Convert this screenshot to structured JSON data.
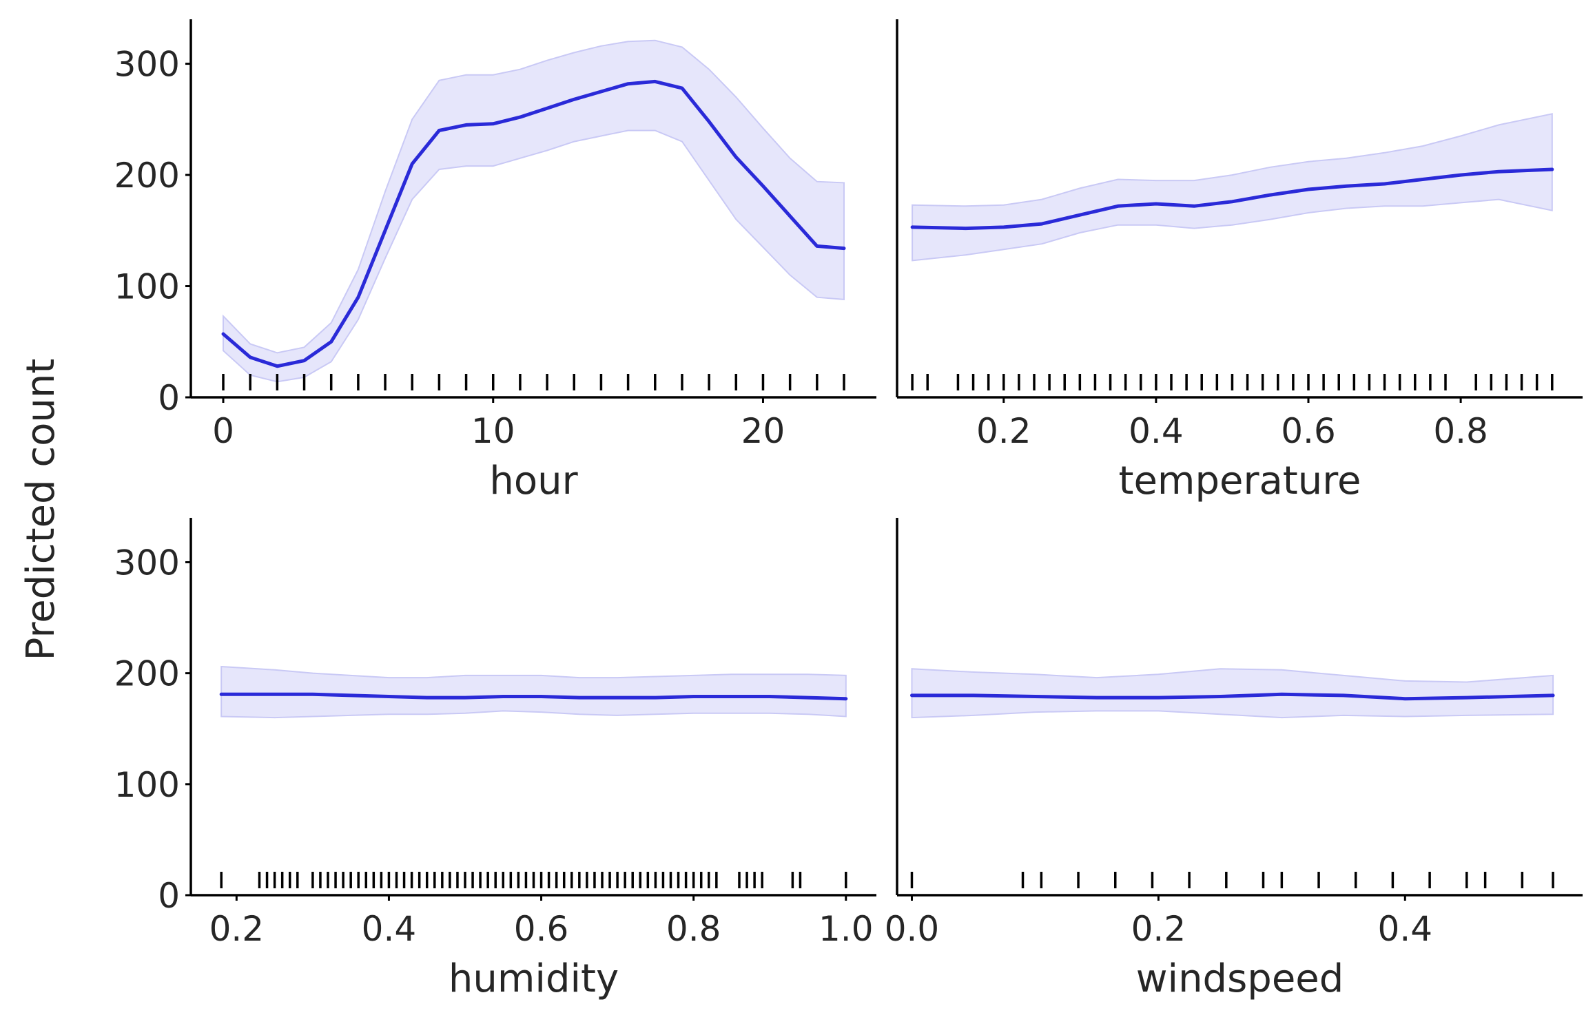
{
  "figure": {
    "ylabel": "Predicted count",
    "colors": {
      "mean_line": "#2a2ad8",
      "band_fill": "#e6e6fb",
      "band_edge": "#c9c9f5",
      "rug": "#000000"
    }
  },
  "chart_data": [
    {
      "type": "line",
      "xlabel": "hour",
      "ylabel": "Predicted count",
      "xlim": [
        -1.2,
        24.2
      ],
      "ylim": [
        0,
        340
      ],
      "xticks": [
        0,
        10,
        20
      ],
      "xtick_labels": [
        "0",
        "10",
        "20"
      ],
      "yticks": [
        0,
        100,
        200,
        300
      ],
      "ytick_labels": [
        "0",
        "100",
        "200",
        "300"
      ],
      "series": [
        {
          "x": [
            0,
            1,
            2,
            3,
            4,
            5,
            6,
            7,
            8,
            9,
            10,
            11,
            12,
            13,
            14,
            15,
            16,
            17,
            18,
            19,
            20,
            21,
            22,
            23
          ],
          "mean": [
            57,
            36,
            28,
            33,
            50,
            90,
            150,
            210,
            240,
            245,
            246,
            252,
            260,
            268,
            275,
            282,
            284,
            278,
            248,
            216,
            190,
            163,
            136,
            134
          ],
          "lower": [
            42,
            20,
            14,
            18,
            32,
            70,
            125,
            178,
            205,
            208,
            208,
            215,
            222,
            230,
            235,
            240,
            240,
            230,
            195,
            160,
            135,
            110,
            90,
            88
          ],
          "upper": [
            73,
            48,
            40,
            45,
            67,
            115,
            185,
            250,
            285,
            290,
            290,
            295,
            303,
            310,
            316,
            320,
            321,
            315,
            295,
            270,
            242,
            215,
            194,
            193
          ]
        }
      ],
      "rug": [
        0,
        1,
        2,
        3,
        4,
        5,
        6,
        7,
        8,
        9,
        10,
        11,
        12,
        13,
        14,
        15,
        16,
        17,
        18,
        19,
        20,
        21,
        22,
        23
      ]
    },
    {
      "type": "line",
      "xlabel": "temperature",
      "ylabel": "",
      "xlim": [
        0.06,
        0.96
      ],
      "ylim": [
        0,
        340
      ],
      "xticks": [
        0.2,
        0.4,
        0.6,
        0.8
      ],
      "xtick_labels": [
        "0.2",
        "0.4",
        "0.6",
        "0.8"
      ],
      "yticks": [],
      "ytick_labels": [],
      "series": [
        {
          "x": [
            0.08,
            0.15,
            0.2,
            0.25,
            0.3,
            0.35,
            0.4,
            0.45,
            0.5,
            0.55,
            0.6,
            0.65,
            0.7,
            0.75,
            0.8,
            0.85,
            0.92
          ],
          "mean": [
            153,
            152,
            153,
            156,
            164,
            172,
            174,
            172,
            176,
            182,
            187,
            190,
            192,
            196,
            200,
            203,
            205
          ],
          "lower": [
            123,
            128,
            133,
            138,
            148,
            155,
            155,
            152,
            155,
            160,
            166,
            170,
            172,
            172,
            175,
            178,
            168
          ],
          "upper": [
            173,
            172,
            173,
            178,
            188,
            196,
            195,
            195,
            200,
            207,
            212,
            215,
            220,
            226,
            235,
            245,
            255
          ]
        }
      ],
      "rug": [
        0.08,
        0.1,
        0.14,
        0.16,
        0.18,
        0.2,
        0.22,
        0.24,
        0.26,
        0.28,
        0.3,
        0.32,
        0.34,
        0.36,
        0.38,
        0.4,
        0.42,
        0.44,
        0.46,
        0.48,
        0.5,
        0.52,
        0.54,
        0.56,
        0.58,
        0.6,
        0.62,
        0.64,
        0.66,
        0.68,
        0.7,
        0.72,
        0.74,
        0.76,
        0.78,
        0.82,
        0.84,
        0.86,
        0.88,
        0.9,
        0.92
      ]
    },
    {
      "type": "line",
      "xlabel": "humidity",
      "ylabel": "Predicted count",
      "xlim": [
        0.14,
        1.04
      ],
      "ylim": [
        0,
        340
      ],
      "xticks": [
        0.2,
        0.4,
        0.6,
        0.8,
        1.0
      ],
      "xtick_labels": [
        "0.2",
        "0.4",
        "0.6",
        "0.8",
        "1.0"
      ],
      "yticks": [
        0,
        100,
        200,
        300
      ],
      "ytick_labels": [
        "0",
        "100",
        "200",
        "300"
      ],
      "series": [
        {
          "x": [
            0.18,
            0.25,
            0.3,
            0.35,
            0.4,
            0.45,
            0.5,
            0.55,
            0.6,
            0.65,
            0.7,
            0.75,
            0.8,
            0.85,
            0.9,
            0.95,
            1.0
          ],
          "mean": [
            181,
            181,
            181,
            180,
            179,
            178,
            178,
            179,
            179,
            178,
            178,
            178,
            179,
            179,
            179,
            178,
            177
          ],
          "lower": [
            161,
            160,
            161,
            162,
            163,
            163,
            164,
            166,
            165,
            163,
            162,
            163,
            164,
            164,
            164,
            163,
            161
          ],
          "upper": [
            206,
            203,
            200,
            198,
            196,
            196,
            198,
            198,
            198,
            196,
            196,
            197,
            198,
            199,
            199,
            199,
            198
          ]
        }
      ],
      "rug": [
        0.18,
        0.23,
        0.24,
        0.25,
        0.26,
        0.27,
        0.28,
        0.3,
        0.31,
        0.32,
        0.33,
        0.34,
        0.35,
        0.36,
        0.37,
        0.38,
        0.39,
        0.4,
        0.41,
        0.42,
        0.43,
        0.44,
        0.45,
        0.46,
        0.47,
        0.48,
        0.49,
        0.5,
        0.51,
        0.52,
        0.53,
        0.54,
        0.55,
        0.56,
        0.57,
        0.58,
        0.59,
        0.6,
        0.61,
        0.62,
        0.63,
        0.64,
        0.65,
        0.66,
        0.67,
        0.68,
        0.69,
        0.7,
        0.71,
        0.72,
        0.73,
        0.74,
        0.75,
        0.76,
        0.77,
        0.78,
        0.79,
        0.8,
        0.81,
        0.82,
        0.83,
        0.86,
        0.87,
        0.88,
        0.89,
        0.93,
        0.94,
        1.0
      ]
    },
    {
      "type": "line",
      "xlabel": "windspeed",
      "ylabel": "",
      "xlim": [
        -0.012,
        0.544
      ],
      "ylim": [
        0,
        340
      ],
      "xticks": [
        0.0,
        0.2,
        0.4
      ],
      "xtick_labels": [
        "0.0",
        "0.2",
        "0.4"
      ],
      "yticks": [],
      "ytick_labels": [],
      "series": [
        {
          "x": [
            0.0,
            0.05,
            0.1,
            0.15,
            0.2,
            0.25,
            0.3,
            0.35,
            0.4,
            0.45,
            0.52
          ],
          "mean": [
            180,
            180,
            179,
            178,
            178,
            179,
            181,
            180,
            177,
            178,
            180
          ],
          "lower": [
            160,
            162,
            165,
            166,
            166,
            163,
            160,
            162,
            161,
            162,
            163
          ],
          "upper": [
            204,
            201,
            199,
            196,
            199,
            204,
            203,
            198,
            193,
            192,
            198
          ]
        }
      ],
      "rug": [
        0.0,
        0.09,
        0.105,
        0.135,
        0.165,
        0.195,
        0.225,
        0.255,
        0.285,
        0.3,
        0.33,
        0.36,
        0.39,
        0.42,
        0.45,
        0.465,
        0.495,
        0.52
      ]
    }
  ]
}
